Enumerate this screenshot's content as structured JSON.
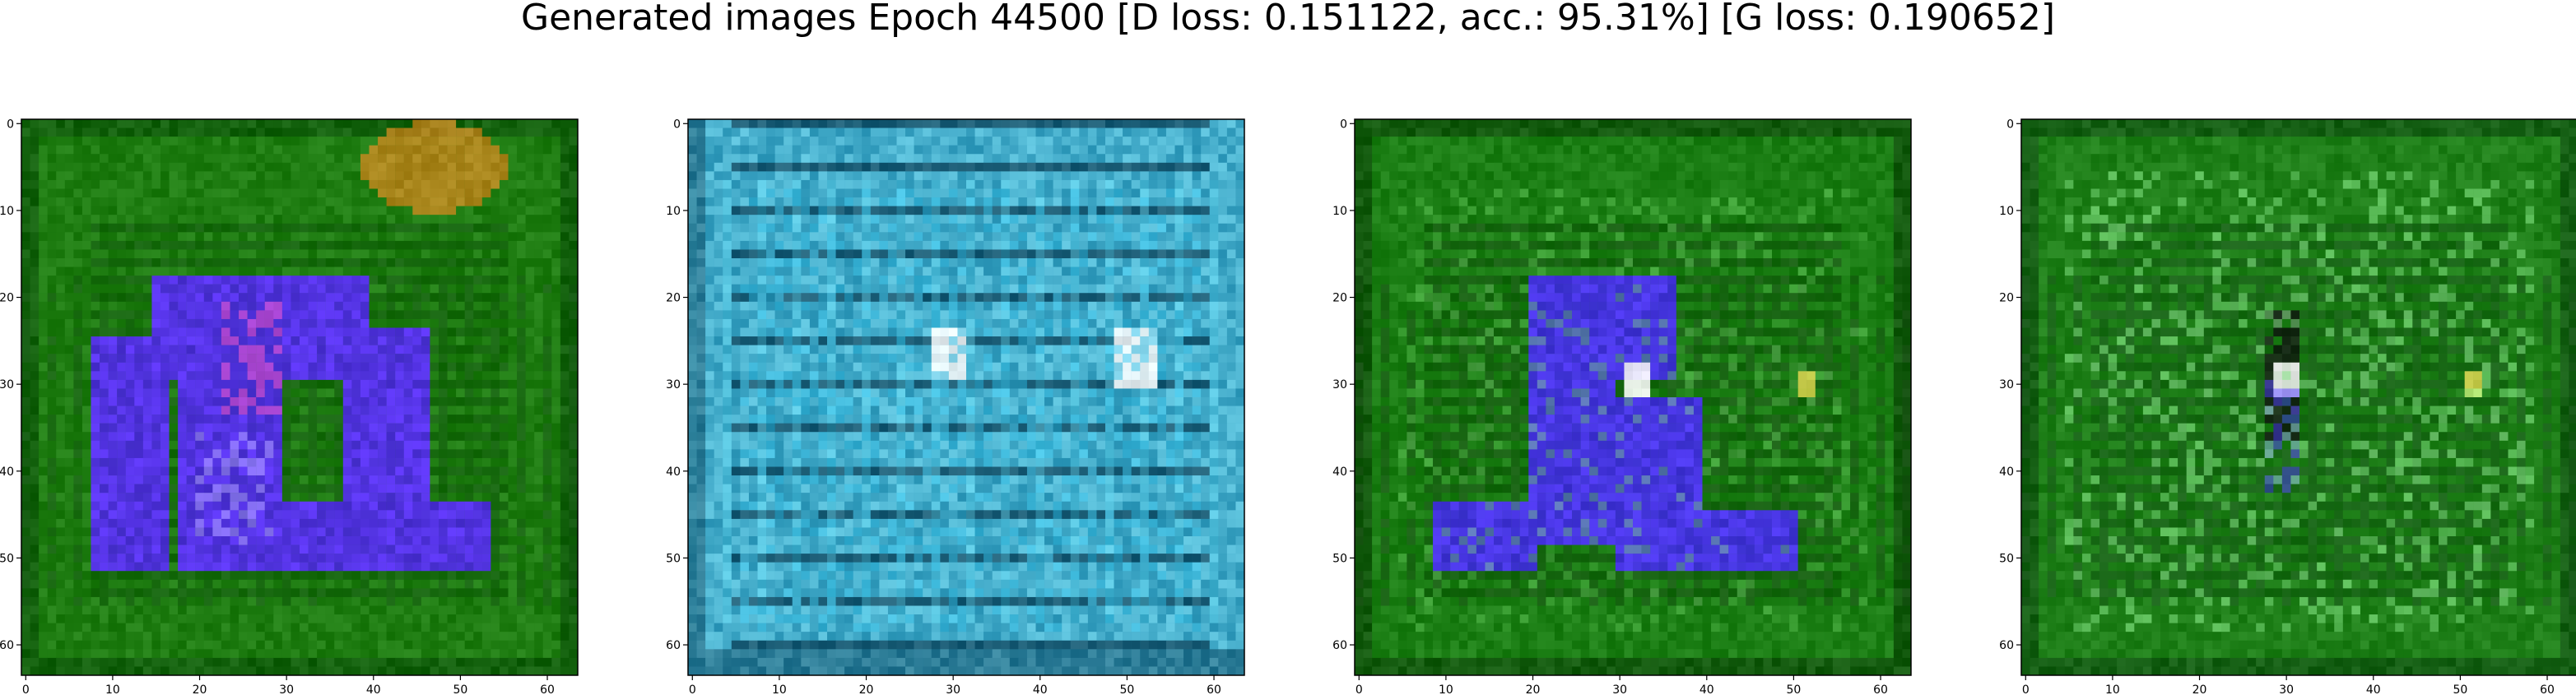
{
  "figure": {
    "suptitle": "Generated images Epoch 44500 [D loss: 0.151122, acc.: 95.31%] [G loss: 0.190652]"
  },
  "chart_data": [
    {
      "type": "heatmap",
      "description": "generated image 1",
      "xlim": [
        -0.5,
        63.5
      ],
      "ylim": [
        63.5,
        -0.5
      ],
      "xticks": [
        "0",
        "10",
        "20",
        "30",
        "40",
        "50",
        "60"
      ],
      "yticks": [
        "0",
        "10",
        "20",
        "30",
        "40",
        "50",
        "60"
      ],
      "palette": {
        "background": "#1f7d12",
        "frame": "#0a4a09",
        "accent": "#c0861d",
        "shape": "#5b2bff",
        "highlight": "#ff4fa6",
        "light": "#d6d6ff"
      }
    },
    {
      "type": "heatmap",
      "description": "generated image 2",
      "xlim": [
        -0.5,
        63.5
      ],
      "ylim": [
        63.5,
        -0.5
      ],
      "xticks": [
        "0",
        "10",
        "20",
        "30",
        "40",
        "50",
        "60"
      ],
      "yticks": [
        "0",
        "10",
        "20",
        "30",
        "40",
        "50",
        "60"
      ],
      "palette": {
        "background": "#1c8bb3",
        "frame": "#0c3f56",
        "accent": "#65e7ff",
        "shape": "#37bde3",
        "highlight": "#ffffff",
        "light": "#9ff7ff"
      }
    },
    {
      "type": "heatmap",
      "description": "generated image 3",
      "xlim": [
        -0.5,
        63.5
      ],
      "ylim": [
        63.5,
        -0.5
      ],
      "xticks": [
        "0",
        "10",
        "20",
        "30",
        "40",
        "50",
        "60"
      ],
      "yticks": [
        "0",
        "10",
        "20",
        "30",
        "40",
        "50",
        "60"
      ],
      "palette": {
        "background": "#1c7f15",
        "frame": "#0c3c08",
        "accent": "#6fd466",
        "shape": "#4d2dff",
        "highlight": "#ffffff",
        "light": "#8ddcff"
      }
    },
    {
      "type": "heatmap",
      "description": "generated image 4",
      "xlim": [
        -0.5,
        63.5
      ],
      "ylim": [
        63.5,
        -0.5
      ],
      "xticks": [
        "0",
        "10",
        "20",
        "30",
        "40",
        "50",
        "60"
      ],
      "yticks": [
        "0",
        "10",
        "20",
        "30",
        "40",
        "50",
        "60"
      ],
      "palette": {
        "background": "#1f8019",
        "frame": "#0d4410",
        "accent": "#8ff08e",
        "shape": "#4f39ff",
        "highlight": "#ffffff",
        "light": "#c7ffd0"
      }
    }
  ]
}
